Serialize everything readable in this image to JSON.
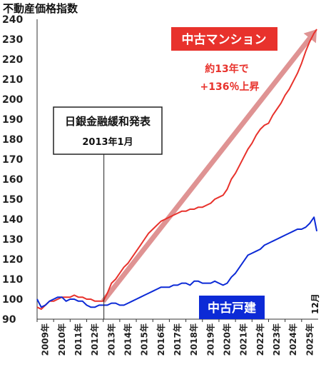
{
  "chart_data": {
    "type": "line",
    "title": "不動産価格指数",
    "ylim": [
      90,
      240
    ],
    "yticks": [
      90,
      100,
      110,
      120,
      130,
      140,
      150,
      160,
      170,
      180,
      190,
      200,
      210,
      220,
      230,
      240
    ],
    "xlim": [
      2009.0,
      2026.0
    ],
    "xtick_labels": [
      "2009年",
      "2010年",
      "2011年",
      "2012年",
      "2013年",
      "2014年",
      "2015年",
      "2016年",
      "2017年",
      "2018年",
      "2019年",
      "2020年",
      "2021年",
      "2022年",
      "2023年",
      "2024年",
      "2025年"
    ],
    "end_label": "12月",
    "series": [
      {
        "name": "中古マンション",
        "color": "#e8322c",
        "points": [
          [
            2009.0,
            96
          ],
          [
            2009.25,
            95
          ],
          [
            2009.5,
            97
          ],
          [
            2009.75,
            99
          ],
          [
            2010.0,
            99
          ],
          [
            2010.25,
            100
          ],
          [
            2010.5,
            101
          ],
          [
            2010.75,
            101
          ],
          [
            2011.0,
            101
          ],
          [
            2011.25,
            102
          ],
          [
            2011.5,
            101
          ],
          [
            2011.75,
            101
          ],
          [
            2012.0,
            100
          ],
          [
            2012.25,
            100
          ],
          [
            2012.5,
            99
          ],
          [
            2012.75,
            99
          ],
          [
            2013.0,
            99
          ],
          [
            2013.25,
            103
          ],
          [
            2013.5,
            108
          ],
          [
            2013.75,
            110
          ],
          [
            2014.0,
            113
          ],
          [
            2014.25,
            116
          ],
          [
            2014.5,
            118
          ],
          [
            2014.75,
            121
          ],
          [
            2015.0,
            124
          ],
          [
            2015.25,
            127
          ],
          [
            2015.5,
            130
          ],
          [
            2015.75,
            133
          ],
          [
            2016.0,
            135
          ],
          [
            2016.25,
            137
          ],
          [
            2016.5,
            139
          ],
          [
            2016.75,
            140
          ],
          [
            2017.0,
            141
          ],
          [
            2017.25,
            142
          ],
          [
            2017.5,
            143
          ],
          [
            2017.75,
            144
          ],
          [
            2018.0,
            144
          ],
          [
            2018.25,
            145
          ],
          [
            2018.5,
            145
          ],
          [
            2018.75,
            146
          ],
          [
            2019.0,
            146
          ],
          [
            2019.25,
            147
          ],
          [
            2019.5,
            148
          ],
          [
            2019.75,
            150
          ],
          [
            2020.0,
            151
          ],
          [
            2020.25,
            152
          ],
          [
            2020.5,
            155
          ],
          [
            2020.75,
            160
          ],
          [
            2021.0,
            163
          ],
          [
            2021.25,
            167
          ],
          [
            2021.5,
            171
          ],
          [
            2021.75,
            175
          ],
          [
            2022.0,
            178
          ],
          [
            2022.25,
            182
          ],
          [
            2022.5,
            185
          ],
          [
            2022.75,
            187
          ],
          [
            2023.0,
            188
          ],
          [
            2023.25,
            192
          ],
          [
            2023.5,
            195
          ],
          [
            2023.75,
            198
          ],
          [
            2024.0,
            202
          ],
          [
            2024.25,
            205
          ],
          [
            2024.5,
            209
          ],
          [
            2024.75,
            213
          ],
          [
            2025.0,
            218
          ],
          [
            2025.25,
            224
          ],
          [
            2025.5,
            229
          ],
          [
            2025.75,
            233
          ],
          [
            2025.92,
            235
          ]
        ]
      },
      {
        "name": "中古戸建",
        "color": "#0c2ad6",
        "points": [
          [
            2009.0,
            100
          ],
          [
            2009.25,
            96
          ],
          [
            2009.5,
            97
          ],
          [
            2009.75,
            99
          ],
          [
            2010.0,
            100
          ],
          [
            2010.25,
            101
          ],
          [
            2010.5,
            101
          ],
          [
            2010.75,
            99
          ],
          [
            2011.0,
            100
          ],
          [
            2011.25,
            100
          ],
          [
            2011.5,
            99
          ],
          [
            2011.75,
            99
          ],
          [
            2012.0,
            97
          ],
          [
            2012.25,
            96
          ],
          [
            2012.5,
            96
          ],
          [
            2012.75,
            97
          ],
          [
            2013.0,
            97
          ],
          [
            2013.25,
            97
          ],
          [
            2013.5,
            98
          ],
          [
            2013.75,
            98
          ],
          [
            2014.0,
            97
          ],
          [
            2014.25,
            97
          ],
          [
            2014.5,
            98
          ],
          [
            2014.75,
            99
          ],
          [
            2015.0,
            100
          ],
          [
            2015.25,
            101
          ],
          [
            2015.5,
            102
          ],
          [
            2015.75,
            103
          ],
          [
            2016.0,
            104
          ],
          [
            2016.25,
            105
          ],
          [
            2016.5,
            106
          ],
          [
            2016.75,
            106
          ],
          [
            2017.0,
            106
          ],
          [
            2017.25,
            107
          ],
          [
            2017.5,
            107
          ],
          [
            2017.75,
            108
          ],
          [
            2018.0,
            108
          ],
          [
            2018.25,
            107
          ],
          [
            2018.5,
            109
          ],
          [
            2018.75,
            109
          ],
          [
            2019.0,
            108
          ],
          [
            2019.25,
            108
          ],
          [
            2019.5,
            108
          ],
          [
            2019.75,
            109
          ],
          [
            2020.0,
            108
          ],
          [
            2020.25,
            107
          ],
          [
            2020.5,
            108
          ],
          [
            2020.75,
            111
          ],
          [
            2021.0,
            113
          ],
          [
            2021.25,
            116
          ],
          [
            2021.5,
            119
          ],
          [
            2021.75,
            122
          ],
          [
            2022.0,
            123
          ],
          [
            2022.25,
            124
          ],
          [
            2022.5,
            125
          ],
          [
            2022.75,
            127
          ],
          [
            2023.0,
            128
          ],
          [
            2023.25,
            129
          ],
          [
            2023.5,
            130
          ],
          [
            2023.75,
            131
          ],
          [
            2024.0,
            132
          ],
          [
            2024.25,
            133
          ],
          [
            2024.5,
            134
          ],
          [
            2024.75,
            135
          ],
          [
            2025.0,
            135
          ],
          [
            2025.25,
            136
          ],
          [
            2025.5,
            138
          ],
          [
            2025.75,
            141
          ],
          [
            2025.92,
            134
          ]
        ]
      }
    ],
    "annotations": {
      "event_title": "日銀金融緩和発表",
      "event_date": "2013年1月",
      "event_x": 2013.04,
      "series_label_mansion": "中古マンション",
      "series_label_house": "中古戸建",
      "growth_line1": "約13年で",
      "growth_line2": "+136％上昇",
      "arrow_from": [
        2013.0,
        99
      ],
      "arrow_to": [
        2025.92,
        235
      ]
    }
  }
}
